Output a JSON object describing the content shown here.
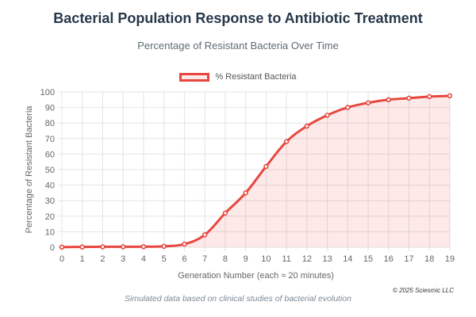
{
  "header": {
    "title": "Bacterial Population Response to Antibiotic Treatment",
    "subtitle": "Percentage of Resistant Bacteria Over Time"
  },
  "footer": {
    "copyright": "© 2025 Sciesmic LLC",
    "note": "Simulated data based on clinical studies of bacterial evolution"
  },
  "colors": {
    "line": "#e8473f",
    "fill": "rgba(232,71,63,0.12)",
    "grid": "#e4e4e4"
  },
  "chart_data": {
    "type": "area",
    "title": "Bacterial Population Response to Antibiotic Treatment",
    "subtitle": "Percentage of Resistant Bacteria Over Time",
    "xlabel": "Generation Number (each ≈ 20 minutes)",
    "ylabel": "Percentage of Resistant Bacteria",
    "xlim": [
      0,
      19
    ],
    "ylim": [
      0,
      100
    ],
    "x_ticks": [
      0,
      1,
      2,
      3,
      4,
      5,
      6,
      7,
      8,
      9,
      10,
      11,
      12,
      13,
      14,
      15,
      16,
      17,
      18,
      19
    ],
    "y_ticks": [
      0,
      10,
      20,
      30,
      40,
      50,
      60,
      70,
      80,
      90,
      100
    ],
    "grid": true,
    "legend_position": "top-center",
    "series": [
      {
        "name": "% Resistant Bacteria",
        "x": [
          0,
          1,
          2,
          3,
          4,
          5,
          6,
          7,
          8,
          9,
          10,
          11,
          12,
          13,
          14,
          15,
          16,
          17,
          18,
          19
        ],
        "values": [
          0.1,
          0.2,
          0.3,
          0.3,
          0.4,
          0.6,
          2,
          8,
          22,
          35,
          52,
          68,
          78,
          85,
          90,
          93,
          95,
          96,
          97,
          97.5
        ]
      }
    ]
  }
}
